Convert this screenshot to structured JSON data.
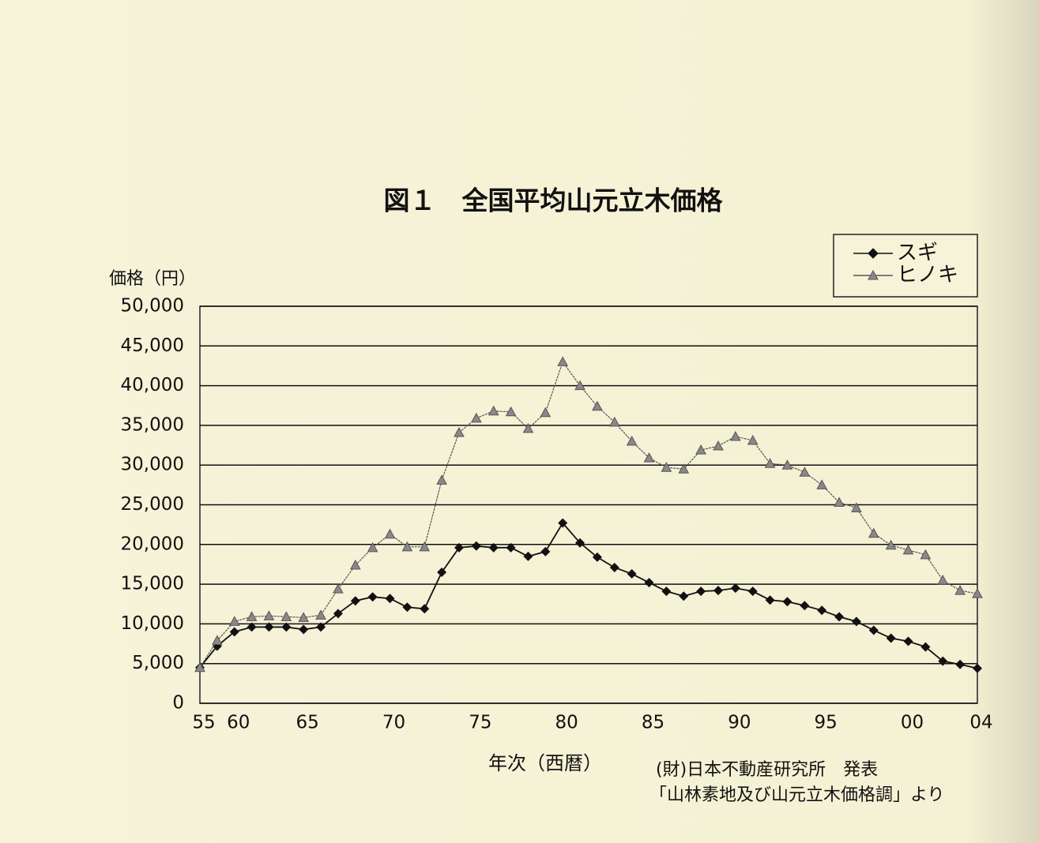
{
  "chart_data": {
    "type": "line",
    "title": "図１　全国平均山元立木価格",
    "y_label": "価格（円）",
    "x_label": "年次（西暦）",
    "source": [
      "(財)日本不動産研究所　発表",
      "「山林素地及び山元立木価格調」より"
    ],
    "categories": [
      "55",
      null,
      "60",
      null,
      null,
      null,
      "65",
      null,
      null,
      null,
      null,
      "70",
      null,
      null,
      null,
      null,
      "75",
      null,
      null,
      null,
      null,
      "80",
      null,
      null,
      null,
      null,
      "85",
      null,
      null,
      null,
      null,
      "90",
      null,
      null,
      null,
      null,
      "95",
      null,
      null,
      null,
      null,
      "00",
      null,
      null,
      null,
      "04"
    ],
    "series": [
      {
        "name": "スギ",
        "color": "#111111",
        "marker": "diamond",
        "values": [
          4500,
          7200,
          9000,
          9600,
          9600,
          9600,
          9300,
          9600,
          11300,
          12900,
          13400,
          13200,
          12100,
          11900,
          16500,
          19600,
          19800,
          19600,
          19600,
          18500,
          19100,
          22700,
          20200,
          18400,
          17100,
          16300,
          15200,
          14100,
          13500,
          14100,
          14200,
          14500,
          14100,
          13000,
          12800,
          12300,
          11700,
          10900,
          10300,
          9200,
          8200,
          7800,
          7100,
          5300,
          4900,
          4400
        ]
      },
      {
        "name": "ヒノキ",
        "color": "#555555",
        "marker": "triangle",
        "values": [
          4500,
          7900,
          10300,
          10900,
          11000,
          10900,
          10800,
          11100,
          14400,
          17400,
          19600,
          21300,
          19700,
          19700,
          28100,
          34100,
          35900,
          36800,
          36700,
          34600,
          36600,
          43000,
          40000,
          37400,
          35400,
          33000,
          30900,
          29700,
          29500,
          31900,
          32400,
          33600,
          33100,
          30200,
          30000,
          29100,
          27500,
          25300,
          24600,
          21400,
          19900,
          19300,
          18700,
          15500,
          14200,
          13800
        ]
      }
    ],
    "ylim": [
      0,
      50000
    ],
    "yticks": [
      0,
      {
        "value": 5000,
        "label": "5,000"
      },
      {
        "value": 10000,
        "label": "10,000"
      },
      {
        "value": 15000,
        "label": "15,000"
      },
      {
        "value": 20000,
        "label": "20,000"
      },
      {
        "value": 25000,
        "label": "25,000"
      },
      {
        "value": 30000,
        "label": "30,000"
      },
      {
        "value": 35000,
        "label": "35,000"
      },
      {
        "value": 40000,
        "label": "40,000"
      },
      {
        "value": 45000,
        "label": "45,000"
      },
      {
        "value": 50000,
        "label": "50,000"
      }
    ],
    "grid": true,
    "legend": "top-right"
  }
}
